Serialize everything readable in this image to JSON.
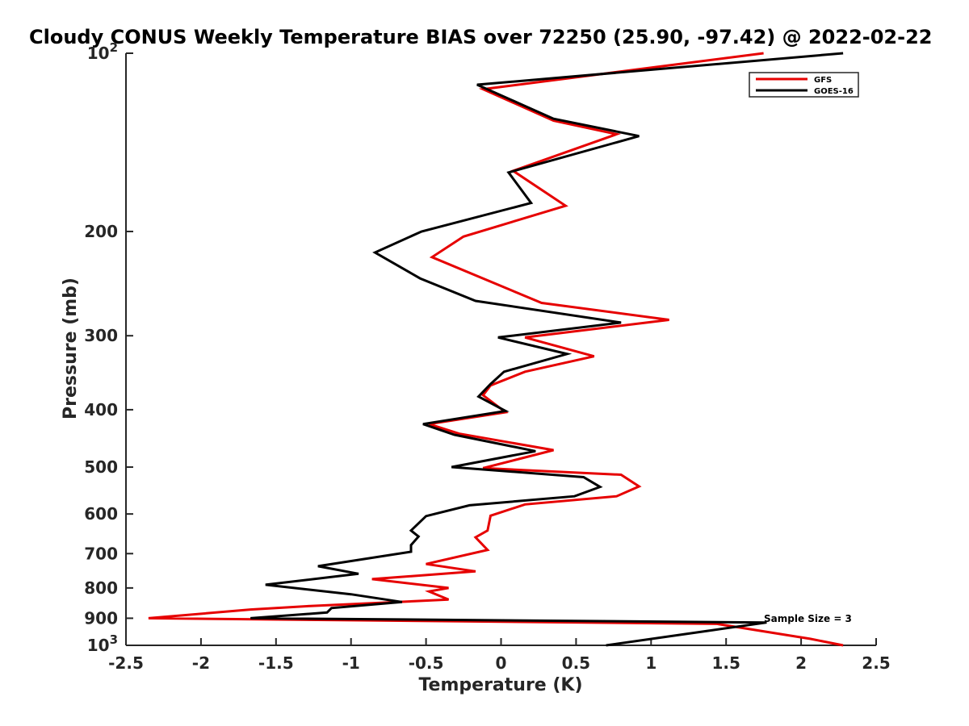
{
  "chart_data": {
    "type": "line",
    "title": "Cloudy CONUS Weekly Temperature BIAS over 72250 (25.90, -97.42) @ 2022-02-22",
    "xlabel": "Temperature (K)",
    "ylabel": "Pressure (mb)",
    "xlim": [
      -2.5,
      2.5
    ],
    "ylim": [
      100,
      1000
    ],
    "y_scale": "log",
    "y_reversed": true,
    "grid": false,
    "legend_position": "top-right",
    "x_ticks": [
      -2.5,
      -2,
      -1.5,
      -1,
      -0.5,
      0,
      0.5,
      1,
      1.5,
      2,
      2.5
    ],
    "x_tick_labels": [
      "-2.5",
      "-2",
      "-1.5",
      "-1",
      "-0.5",
      "0",
      "0.5",
      "1",
      "1.5",
      "2",
      "2.5"
    ],
    "y_ticks": [
      100,
      200,
      300,
      400,
      500,
      600,
      700,
      800,
      900,
      1000
    ],
    "y_tick_labels": [
      {
        "base": "10",
        "exp": "2"
      },
      {
        "base": "200",
        "exp": ""
      },
      {
        "base": "300",
        "exp": ""
      },
      {
        "base": "400",
        "exp": ""
      },
      {
        "base": "500",
        "exp": ""
      },
      {
        "base": "600",
        "exp": ""
      },
      {
        "base": "700",
        "exp": ""
      },
      {
        "base": "800",
        "exp": ""
      },
      {
        "base": "900",
        "exp": ""
      },
      {
        "base": "10",
        "exp": "3"
      }
    ],
    "annotation": "Sample Size = 3",
    "series": [
      {
        "name": "GFS",
        "color": "#e60000",
        "points": [
          [
            1.75,
            100
          ],
          [
            -0.12,
            115
          ],
          [
            0.35,
            130
          ],
          [
            0.77,
            137
          ],
          [
            0.08,
            158
          ],
          [
            0.43,
            181
          ],
          [
            -0.25,
            204
          ],
          [
            -0.46,
            221
          ],
          [
            0.27,
            264
          ],
          [
            1.12,
            282
          ],
          [
            0.16,
            302
          ],
          [
            0.62,
            325
          ],
          [
            0.16,
            345
          ],
          [
            -0.07,
            364
          ],
          [
            -0.12,
            378
          ],
          [
            0.03,
            404
          ],
          [
            -0.48,
            423
          ],
          [
            -0.28,
            439
          ],
          [
            0.35,
            468
          ],
          [
            -0.12,
            502
          ],
          [
            0.8,
            515
          ],
          [
            0.92,
            539
          ],
          [
            0.77,
            560
          ],
          [
            0.16,
            578
          ],
          [
            -0.07,
            604
          ],
          [
            -0.09,
            640
          ],
          [
            -0.17,
            657
          ],
          [
            -0.09,
            690
          ],
          [
            -0.5,
            729
          ],
          [
            -0.17,
            750
          ],
          [
            -0.86,
            773
          ],
          [
            -0.35,
            800
          ],
          [
            -0.48,
            811
          ],
          [
            -0.35,
            837
          ],
          [
            -1.27,
            858
          ],
          [
            -1.67,
            870
          ],
          [
            -2.35,
            900
          ],
          [
            1.44,
            920
          ],
          [
            1.95,
            965
          ],
          [
            2.06,
            975
          ],
          [
            2.28,
            1000
          ]
        ]
      },
      {
        "name": "GOES-16",
        "color": "#000000",
        "points": [
          [
            2.28,
            100
          ],
          [
            -0.16,
            113
          ],
          [
            0.35,
            129
          ],
          [
            0.92,
            138
          ],
          [
            0.05,
            159
          ],
          [
            0.2,
            179
          ],
          [
            -0.53,
            200
          ],
          [
            -0.84,
            217
          ],
          [
            -0.54,
            240
          ],
          [
            -0.17,
            262
          ],
          [
            0.8,
            285
          ],
          [
            -0.02,
            302
          ],
          [
            0.44,
            322
          ],
          [
            0.02,
            345
          ],
          [
            -0.07,
            362
          ],
          [
            -0.15,
            380
          ],
          [
            0.03,
            402
          ],
          [
            -0.52,
            423
          ],
          [
            -0.31,
            441
          ],
          [
            0.23,
            470
          ],
          [
            -0.33,
            500
          ],
          [
            0.55,
            520
          ],
          [
            0.66,
            540
          ],
          [
            0.49,
            560
          ],
          [
            -0.21,
            580
          ],
          [
            -0.5,
            605
          ],
          [
            -0.6,
            640
          ],
          [
            -0.55,
            655
          ],
          [
            -0.6,
            677
          ],
          [
            -0.6,
            695
          ],
          [
            -1.22,
            735
          ],
          [
            -0.95,
            757
          ],
          [
            -1.57,
            790
          ],
          [
            -1.0,
            820
          ],
          [
            -0.66,
            845
          ],
          [
            -1.13,
            865
          ],
          [
            -1.16,
            880
          ],
          [
            -1.67,
            900
          ],
          [
            1.77,
            915
          ],
          [
            1.38,
            945
          ],
          [
            0.7,
            1000
          ]
        ]
      }
    ]
  }
}
